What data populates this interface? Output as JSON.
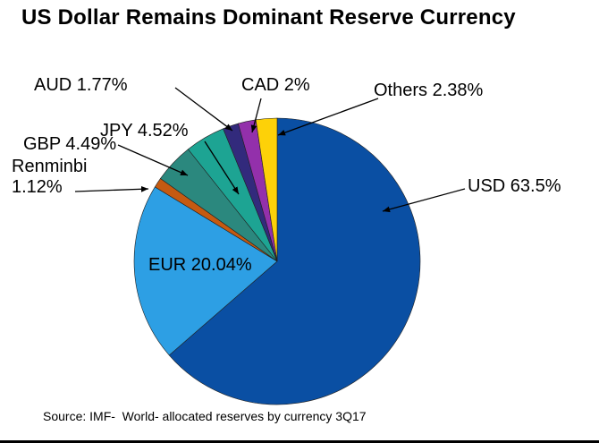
{
  "title": "US Dollar Remains Dominant Reserve Currency",
  "source_note": "Source: IMF-  World- allocated reserves by currency 3Q17",
  "chart_data": {
    "type": "pie",
    "title": "US Dollar Remains Dominant Reserve Currency",
    "unit": "%",
    "direction": "clockwise",
    "start_angle_deg": 0,
    "legend": "none",
    "slices": [
      {
        "label": "USD",
        "value": 63.5,
        "color": "#0a4fa3"
      },
      {
        "label": "EUR",
        "value": 20.04,
        "color": "#2d9fe4"
      },
      {
        "label": "Renminbi",
        "value": 1.12,
        "color": "#c55a11"
      },
      {
        "label": "GBP",
        "value": 4.49,
        "color": "#2b887e"
      },
      {
        "label": "JPY",
        "value": 4.52,
        "color": "#1da493"
      },
      {
        "label": "AUD",
        "value": 1.77,
        "color": "#322a7c"
      },
      {
        "label": "CAD",
        "value": 2.0,
        "color": "#9330ab"
      },
      {
        "label": "Others",
        "value": 2.38,
        "color": "#fdd108"
      }
    ],
    "footnote": "Source: IMF-  World- allocated reserves by currency 3Q17"
  },
  "labels": {
    "usd": "USD 63.5%",
    "eur": "EUR 20.04%",
    "renminbi_line1": "Renminbi",
    "renminbi_line2": "1.12%",
    "gbp": "GBP 4.49%",
    "jpy": "JPY 4.52%",
    "aud": "AUD 1.77%",
    "cad": "CAD 2%",
    "others": "Others 2.38%"
  }
}
